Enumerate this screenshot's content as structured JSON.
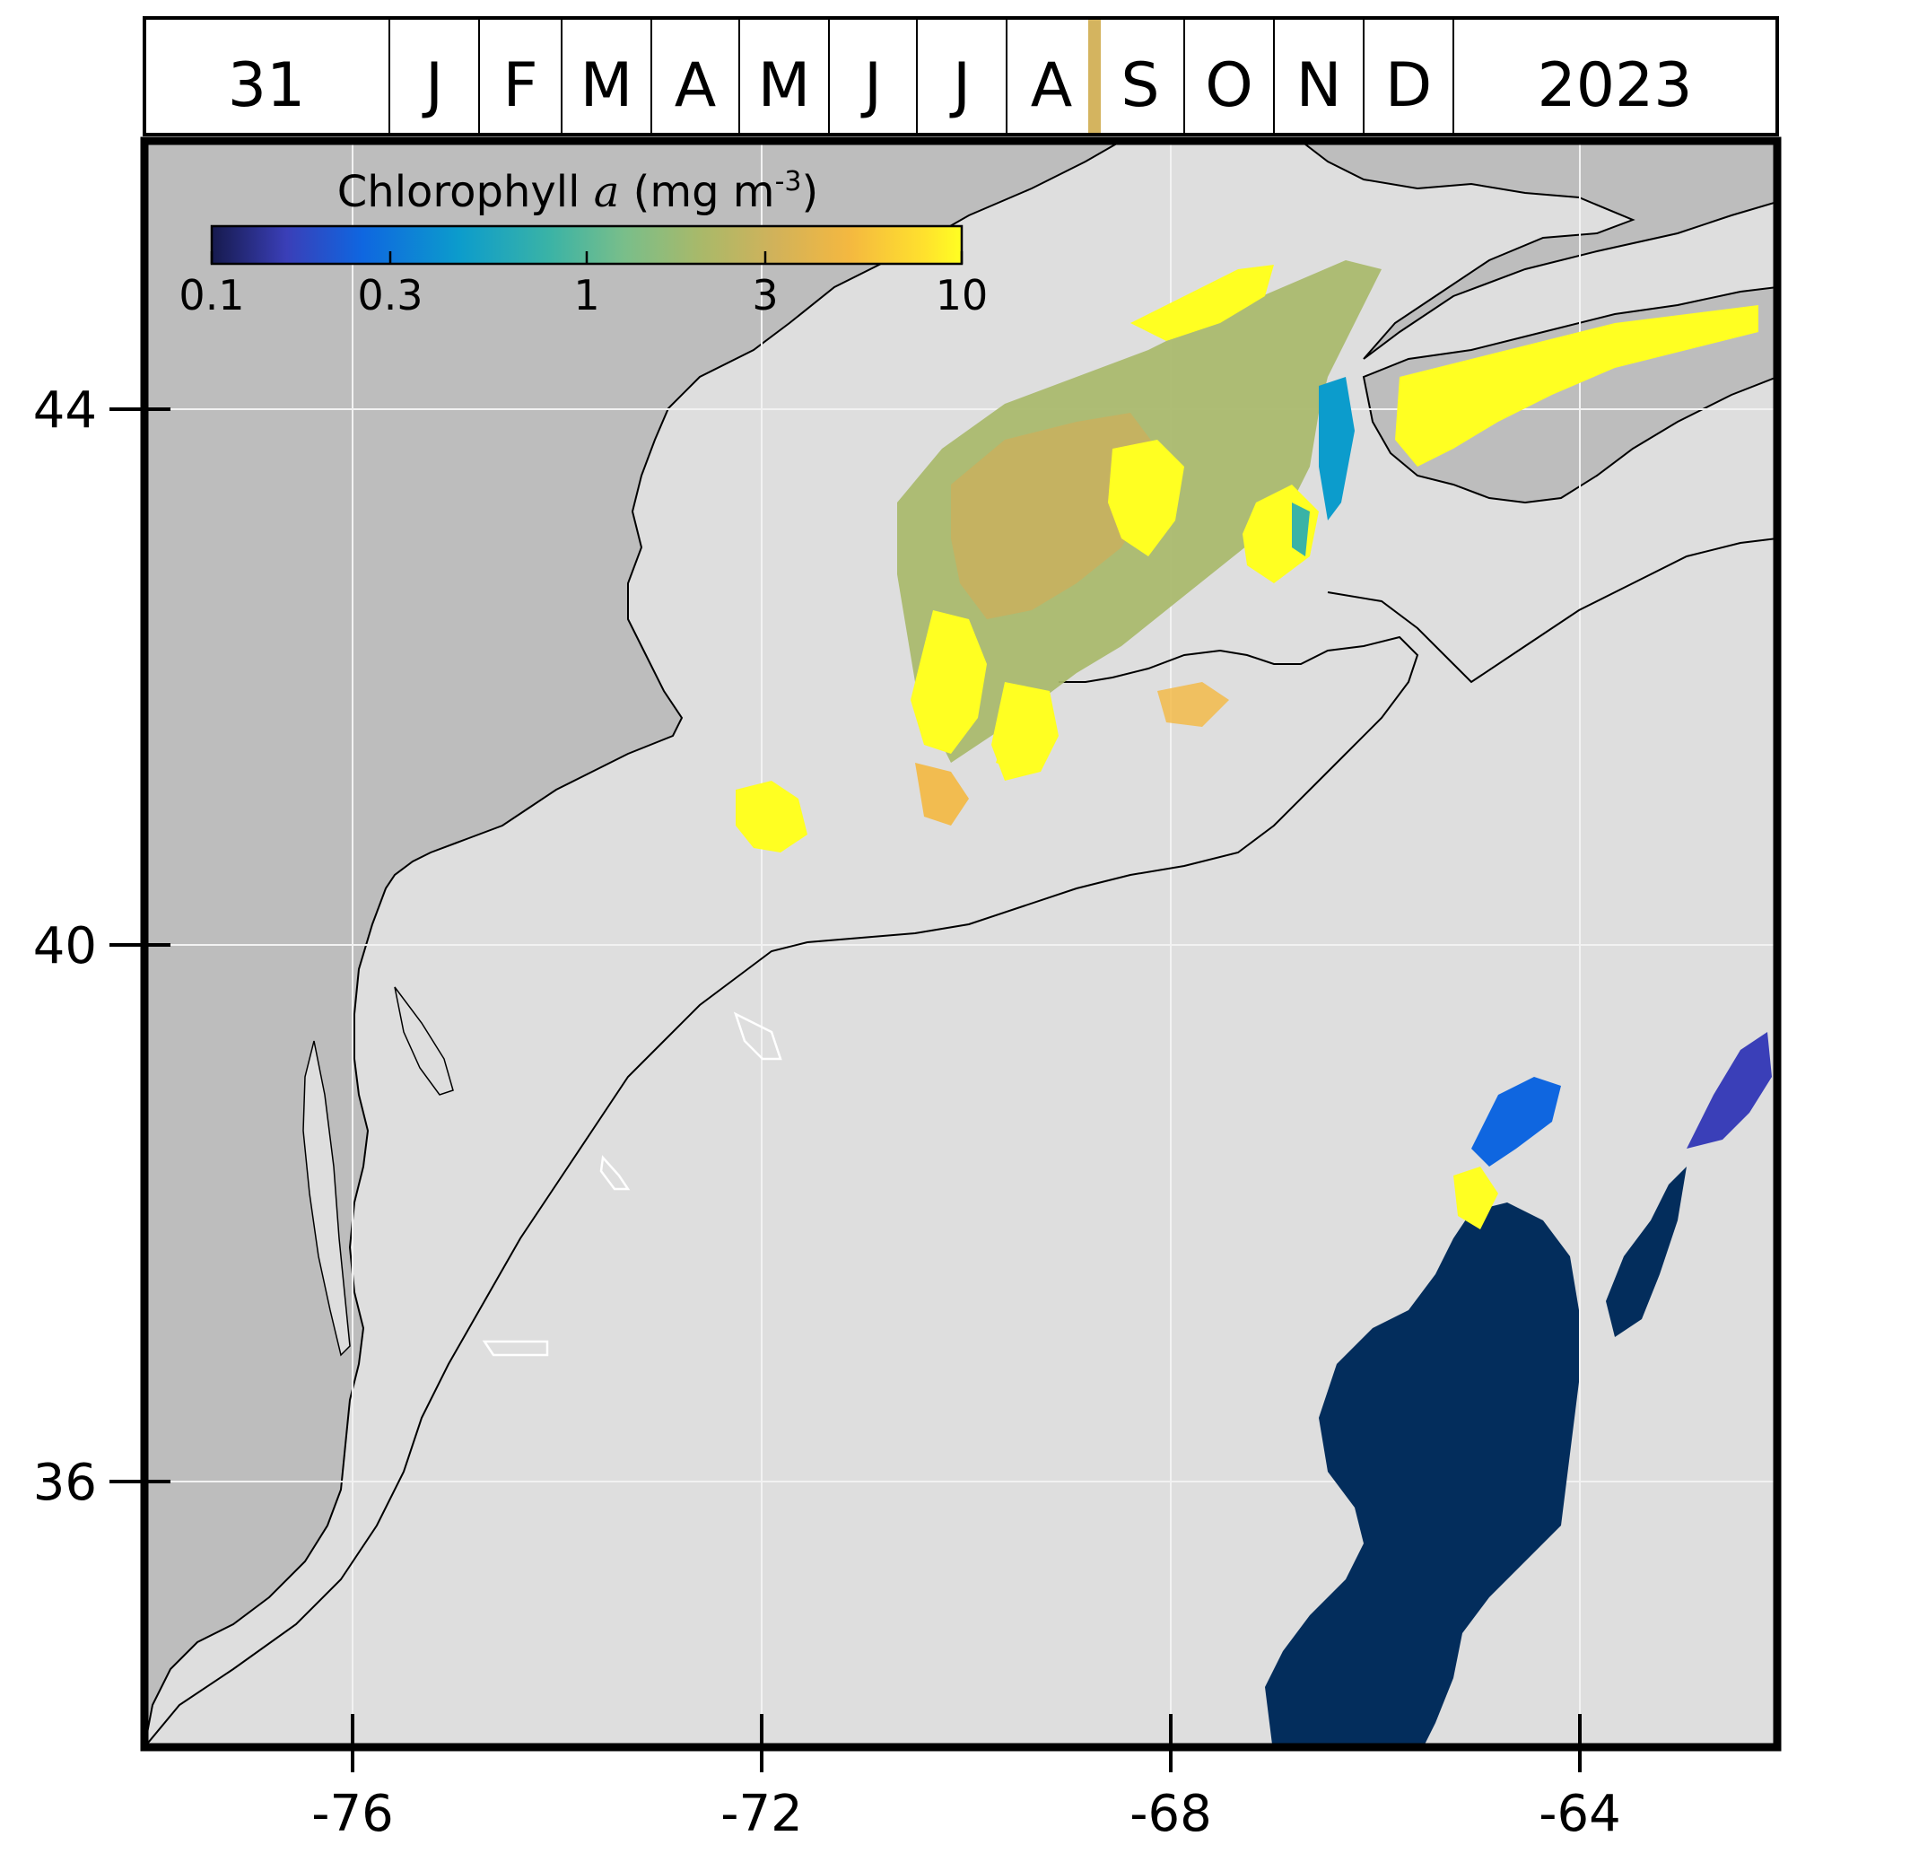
{
  "timeline": {
    "day": "31",
    "months": [
      "J",
      "F",
      "M",
      "A",
      "M",
      "J",
      "J",
      "A",
      "S",
      "O",
      "N",
      "D"
    ],
    "current_month_index": 8,
    "year": "2023",
    "marker_color": "#d4b45f"
  },
  "colorbar": {
    "title_prefix": "Chlorophyll ",
    "title_symbol": "a",
    "title_units_open": " (mg m",
    "title_units_exp": "-3",
    "title_units_close": ")",
    "scale": "log",
    "ticks": [
      "0.1",
      "0.3",
      "1",
      "3",
      "10"
    ],
    "colors": [
      "#161a4d",
      "#3a3fb8",
      "#0f66e0",
      "#0c9ccc",
      "#3ab3a6",
      "#79be8a",
      "#a8b96a",
      "#d1b25a",
      "#f4b840",
      "#ffe12d",
      "#ffff22"
    ]
  },
  "map": {
    "lon_range": [
      -78,
      -62
    ],
    "lat_range": [
      33,
      47
    ],
    "lat_ticks": [
      "44",
      "40",
      "36"
    ],
    "lon_ticks": [
      "-76",
      "-72",
      "-68",
      "-64"
    ],
    "land_color": "#bdbdbd",
    "ocean_color": "#dedede",
    "gridline_color": "#f2f2f2"
  }
}
